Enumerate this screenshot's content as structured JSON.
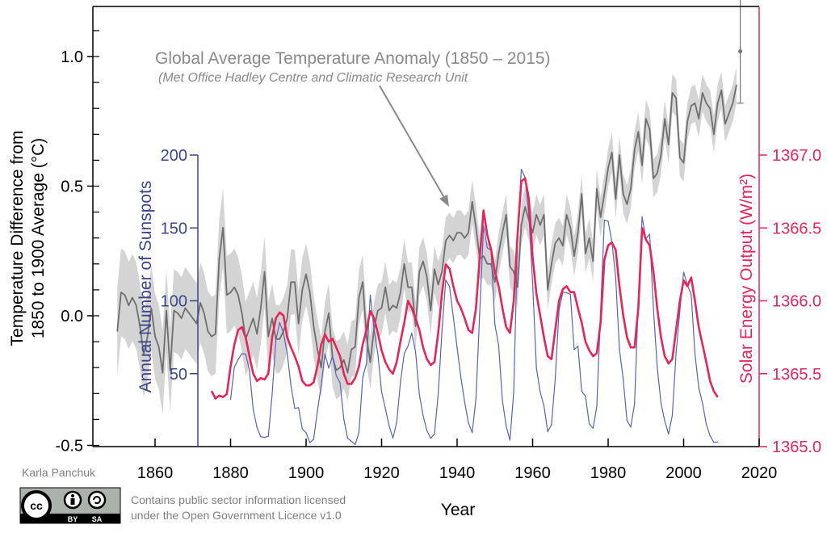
{
  "chart_data": {
    "type": "line",
    "annotation": {
      "title": "Global Average Temperature Anomaly (1850 – 2015)",
      "subtitle": "(Met Office Hadley Centre and Climatic Research Unit"
    },
    "xlabel": "Year",
    "xlim": [
      1843.5,
      2020
    ],
    "xticks": [
      1860,
      1880,
      1900,
      1920,
      1940,
      1960,
      1980,
      2000,
      2020
    ],
    "axes": {
      "temperature": {
        "label_line1": "Temperature Difference from",
        "label_line2": "1850 to 1900 Average (°C)",
        "range": [
          -0.5,
          1.15
        ],
        "ticks": [
          "-0.5",
          "0.0",
          "0.5",
          "1.0"
        ],
        "color": "#000000"
      },
      "sunspots": {
        "label": "Annual Number of Sunspots",
        "range": [
          0,
          200
        ],
        "ticks": [
          "50",
          "100",
          "150",
          "200"
        ],
        "color": "#3c468c"
      },
      "solar": {
        "label": "Solar Energy Output (W/m²)",
        "range": [
          1365.0,
          1367.0
        ],
        "ticks": [
          "1365.0",
          "1365.5",
          "1366.0",
          "1366.5",
          "1367.0"
        ],
        "color": "#e8255a"
      }
    },
    "series": [
      {
        "axis": "temperature",
        "color": "#6e6e6e",
        "band_color": "#d4d4d4",
        "x_start": 1850,
        "values": [
          -0.06,
          0.09,
          0.08,
          0.04,
          0.07,
          0.04,
          -0.04,
          -0.15,
          -0.08,
          0.03,
          -0.08,
          -0.12,
          -0.22,
          0.02,
          -0.21,
          0.02,
          0.01,
          -0.01,
          0.03,
          0.01,
          -0.01,
          -0.03,
          0.05,
          0.01,
          -0.06,
          -0.08,
          -0.07,
          0.22,
          0.34,
          0.08,
          0.09,
          0.11,
          0.08,
          0.01,
          -0.09,
          -0.05,
          -0.01,
          -0.07,
          0.03,
          0.17,
          -0.08,
          -0.01,
          -0.09,
          -0.09,
          -0.06,
          -0.01,
          0.13,
          0.13,
          -0.03,
          0.1,
          0.16,
          0.09,
          -0.04,
          -0.13,
          -0.2,
          -0.06,
          0.01,
          -0.16,
          -0.21,
          -0.2,
          -0.17,
          -0.22,
          -0.13,
          -0.12,
          0.07,
          0.13,
          -0.08,
          -0.18,
          -0.05,
          0.02,
          0.03,
          0.11,
          0.02,
          0.04,
          0.03,
          0.09,
          0.2,
          0.11,
          0.11,
          -0.04,
          0.17,
          0.21,
          0.15,
          0.02,
          0.18,
          0.12,
          0.17,
          0.29,
          0.31,
          0.29,
          0.32,
          0.32,
          0.3,
          0.32,
          0.44,
          0.34,
          0.22,
          0.23,
          0.2,
          0.2,
          0.13,
          0.24,
          0.32,
          0.39,
          0.19,
          0.17,
          0.11,
          0.35,
          0.42,
          0.37,
          0.32,
          0.39,
          0.35,
          0.39,
          0.1,
          0.2,
          0.28,
          0.3,
          0.27,
          0.39,
          0.34,
          0.23,
          0.32,
          0.47,
          0.24,
          0.3,
          0.21,
          0.49,
          0.38,
          0.47,
          0.57,
          0.63,
          0.45,
          0.62,
          0.47,
          0.43,
          0.49,
          0.64,
          0.71,
          0.58,
          0.76,
          0.72,
          0.53,
          0.55,
          0.62,
          0.76,
          0.66,
          0.86,
          0.84,
          0.61,
          0.59,
          0.75,
          0.81,
          0.82,
          0.76,
          0.86,
          0.82,
          0.8,
          0.7,
          0.82,
          0.87,
          0.74,
          0.78,
          0.82,
          0.89
        ],
        "uncertainty": [
          [
            1850,
            0.17
          ],
          [
            1880,
            0.15
          ],
          [
            1900,
            0.12
          ],
          [
            1920,
            0.1
          ],
          [
            1950,
            0.08
          ],
          [
            2014,
            0.07
          ]
        ],
        "final_point": {
          "x": 2015,
          "y": 1.02,
          "error": [
            0.82,
            1.22
          ]
        }
      },
      {
        "axis": "sunspots",
        "color": "#5a64b4",
        "x_start": 1880,
        "values": [
          32.3,
          54.3,
          59.7,
          63.7,
          63.5,
          52.2,
          25.4,
          13.1,
          6.8,
          6.3,
          7.1,
          35.6,
          73.0,
          85.1,
          78.0,
          64.0,
          41.8,
          26.2,
          26.7,
          12.1,
          9.5,
          2.7,
          5.0,
          24.4,
          42.0,
          63.5,
          53.8,
          62.0,
          48.5,
          43.9,
          18.6,
          5.7,
          3.6,
          1.4,
          9.6,
          47.4,
          57.1,
          103.9,
          80.6,
          63.6,
          37.6,
          26.1,
          14.2,
          5.8,
          16.7,
          44.3,
          63.9,
          69.0,
          77.8,
          64.9,
          35.7,
          21.2,
          11.1,
          5.7,
          8.7,
          36.1,
          79.7,
          114.4,
          109.6,
          88.8,
          67.8,
          47.5,
          30.6,
          16.3,
          9.6,
          33.2,
          92.6,
          151.6,
          136.3,
          134.7,
          83.9,
          69.4,
          31.5,
          13.9,
          4.4,
          38.0,
          141.7,
          190.2,
          184.8,
          159.0,
          112.3,
          53.9,
          37.6,
          27.9,
          10.2,
          15.1,
          47.0,
          93.8,
          105.9,
          105.5,
          104.5,
          66.6,
          68.9,
          38.0,
          34.5,
          15.5,
          12.6,
          27.5,
          92.5,
          155.4,
          154.6,
          140.4,
          115.9,
          66.6,
          45.9,
          17.9,
          13.4,
          29.4,
          100.2,
          157.6,
          142.6,
          145.7,
          94.3,
          54.6,
          29.9,
          17.5,
          8.6,
          21.5,
          64.3,
          93.3,
          119.6,
          111.0,
          104.0,
          63.7,
          40.4,
          29.8,
          15.2,
          7.5,
          2.9,
          3.1
        ]
      },
      {
        "axis": "solar",
        "color": "#e8255a",
        "x_start": 1875,
        "values": [
          1365.38,
          1365.33,
          1365.35,
          1365.34,
          1365.36,
          1365.55,
          1365.7,
          1365.8,
          1365.82,
          1365.75,
          1365.62,
          1365.5,
          1365.45,
          1365.47,
          1365.46,
          1365.5,
          1365.75,
          1365.88,
          1365.92,
          1365.9,
          1365.75,
          1365.68,
          1365.62,
          1365.55,
          1365.45,
          1365.42,
          1365.42,
          1365.44,
          1365.55,
          1365.7,
          1365.77,
          1365.72,
          1365.74,
          1365.68,
          1365.62,
          1365.5,
          1365.43,
          1365.43,
          1365.47,
          1365.55,
          1365.7,
          1365.8,
          1365.93,
          1365.88,
          1365.78,
          1365.66,
          1365.58,
          1365.53,
          1365.5,
          1365.58,
          1365.72,
          1365.85,
          1366.0,
          1365.95,
          1365.88,
          1365.8,
          1365.68,
          1365.6,
          1365.56,
          1365.58,
          1365.78,
          1366.05,
          1366.25,
          1366.22,
          1366.1,
          1366.0,
          1365.95,
          1365.88,
          1365.8,
          1365.78,
          1365.95,
          1366.3,
          1366.62,
          1366.45,
          1366.35,
          1366.2,
          1366.1,
          1365.95,
          1365.82,
          1365.78,
          1366.0,
          1366.45,
          1366.82,
          1366.84,
          1366.7,
          1366.3,
          1366.05,
          1365.9,
          1365.75,
          1365.62,
          1365.6,
          1365.8,
          1366.0,
          1366.08,
          1366.1,
          1366.06,
          1366.06,
          1365.95,
          1365.85,
          1365.72,
          1365.66,
          1365.62,
          1365.64,
          1365.85,
          1366.28,
          1366.38,
          1366.4,
          1366.35,
          1366.1,
          1365.9,
          1365.75,
          1365.68,
          1365.68,
          1365.95,
          1366.5,
          1366.42,
          1366.38,
          1366.2,
          1365.95,
          1365.75,
          1365.62,
          1365.57,
          1365.6,
          1365.8,
          1366.0,
          1366.14,
          1366.1,
          1366.16,
          1366.0,
          1365.82,
          1365.7,
          1365.58,
          1365.45,
          1365.38,
          1365.34
        ]
      }
    ]
  },
  "credits": {
    "author": "Karla Panchuk",
    "license_badge": "CC BY SA",
    "badge_by": "BY",
    "badge_sa": "SA",
    "notice_line1": "Contains public sector information licensed",
    "notice_line2": "under the Open Government Licence v1.0"
  }
}
